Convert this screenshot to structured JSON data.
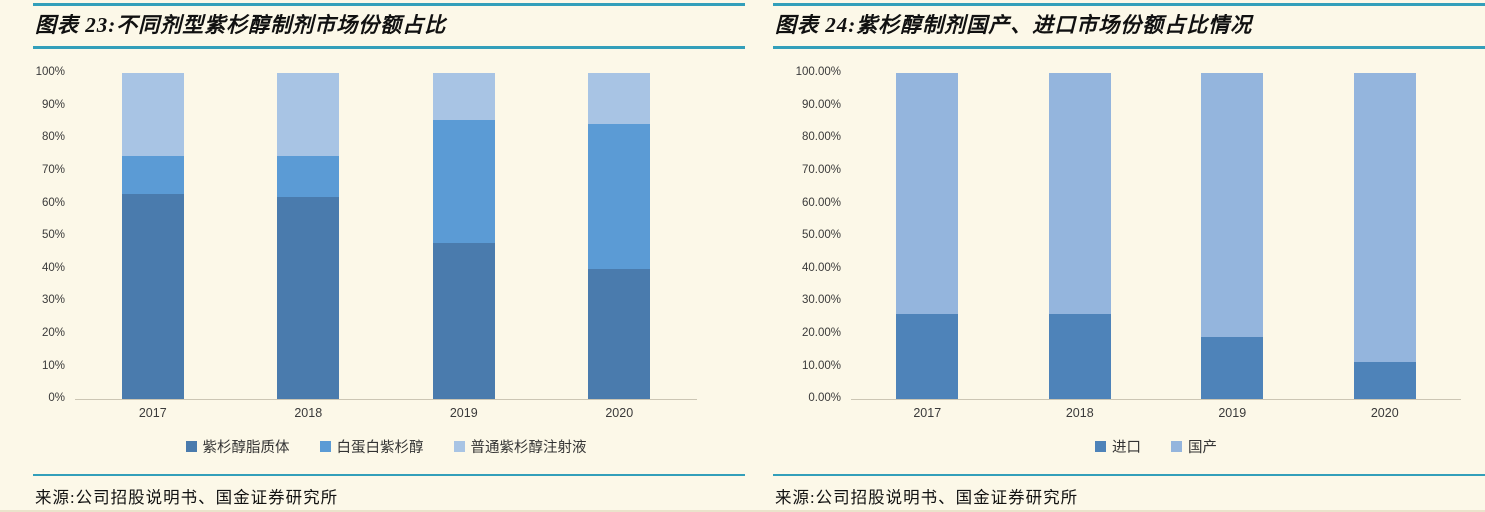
{
  "colors": {
    "background": "#fcf8e8",
    "accent_line": "#339fba",
    "axis_line": "#ccc6b4",
    "tick_text": "#3a3a3a"
  },
  "charts": [
    {
      "title": "图表 23:不同剂型紫杉醇制剂市场份额占比",
      "source": "来源:公司招股说明书、国金证券研究所",
      "chart_data": {
        "type": "bar",
        "stacked": true,
        "categories": [
          "2017",
          "2018",
          "2019",
          "2020"
        ],
        "series": [
          {
            "name": "紫杉醇脂质体",
            "color": "#4a7bad",
            "values": [
              63,
              62,
              48,
              40
            ]
          },
          {
            "name": "白蛋白紫杉醇",
            "color": "#5b9bd5",
            "values": [
              11.5,
              12.5,
              37.5,
              44.5
            ]
          },
          {
            "name": "普通紫杉醇注射液",
            "color": "#a8c4e4",
            "values": [
              25.5,
              25.5,
              14.5,
              15.5
            ]
          }
        ],
        "ylim": [
          0,
          100
        ],
        "yticks": [
          "100%",
          "90%",
          "80%",
          "70%",
          "60%",
          "50%",
          "40%",
          "30%",
          "20%",
          "10%",
          "0%"
        ],
        "grid": false,
        "legend_position": "bottom"
      }
    },
    {
      "title": "图表 24:紫杉醇制剂国产、进口市场份额占比情况",
      "source": "来源:公司招股说明书、国金证券研究所",
      "chart_data": {
        "type": "bar",
        "stacked": true,
        "categories": [
          "2017",
          "2018",
          "2019",
          "2020"
        ],
        "series": [
          {
            "name": "进口",
            "color": "#4e83b9",
            "values": [
              26,
              26,
              19,
              11.5
            ]
          },
          {
            "name": "国产",
            "color": "#94b5dd",
            "values": [
              74,
              74,
              81,
              88.5
            ]
          }
        ],
        "ylim": [
          0,
          100
        ],
        "yticks": [
          "100.00%",
          "90.00%",
          "80.00%",
          "70.00%",
          "60.00%",
          "50.00%",
          "40.00%",
          "30.00%",
          "20.00%",
          "10.00%",
          "0.00%"
        ],
        "grid": false,
        "legend_position": "bottom"
      }
    }
  ]
}
